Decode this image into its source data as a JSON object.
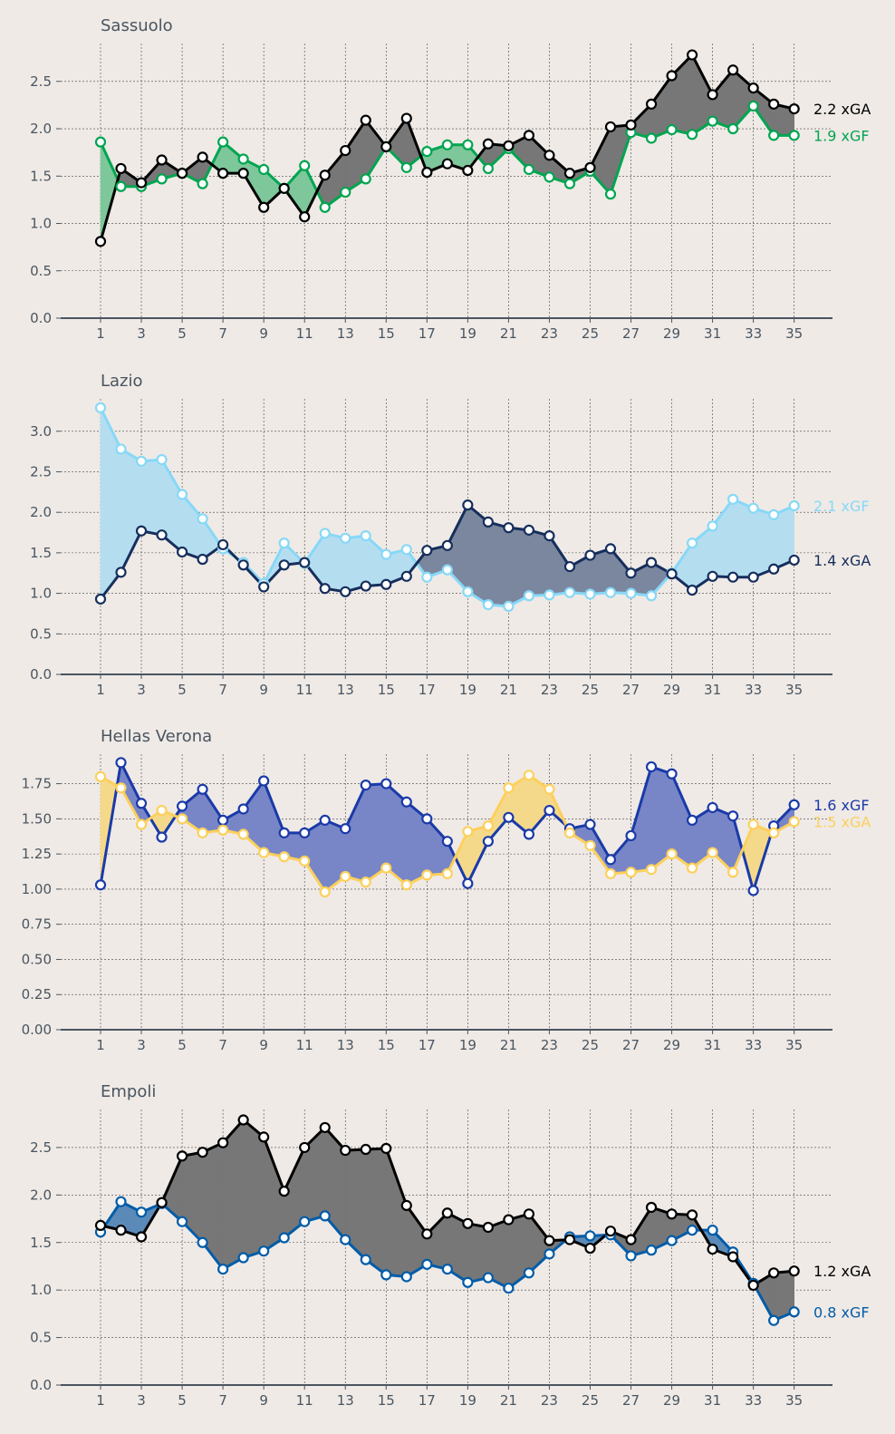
{
  "chart_data": [
    {
      "type": "line",
      "title": "Sassuolo",
      "x": [
        1,
        2,
        3,
        4,
        5,
        6,
        7,
        8,
        9,
        10,
        11,
        12,
        13,
        14,
        15,
        16,
        17,
        18,
        19,
        20,
        21,
        22,
        23,
        24,
        25,
        26,
        27,
        28,
        29,
        30,
        31,
        32,
        33,
        34,
        35
      ],
      "x_ticks": [
        1,
        3,
        5,
        7,
        9,
        11,
        13,
        15,
        17,
        19,
        21,
        23,
        25,
        27,
        29,
        31,
        33,
        35
      ],
      "ylim": [
        0,
        2.9
      ],
      "y_ticks": [
        0.0,
        0.5,
        1.0,
        1.5,
        2.0,
        2.5
      ],
      "y_tick_labels": [
        "0.0",
        "0.5",
        "1.0",
        "1.5",
        "2.0",
        "2.5"
      ],
      "xGF": {
        "label": "1.9 xGF",
        "color": "#00a550",
        "values": [
          1.86,
          1.39,
          1.39,
          1.47,
          1.53,
          1.42,
          1.86,
          1.68,
          1.57,
          1.37,
          1.61,
          1.17,
          1.33,
          1.47,
          1.81,
          1.59,
          1.76,
          1.83,
          1.83,
          1.58,
          1.79,
          1.57,
          1.49,
          1.42,
          1.55,
          1.31,
          1.96,
          1.9,
          1.99,
          1.94,
          2.08,
          2.0,
          2.24,
          1.93,
          1.93
        ]
      },
      "xGA": {
        "label": "2.2 xGA",
        "color": "#000000",
        "values": [
          0.81,
          1.58,
          1.43,
          1.67,
          1.53,
          1.7,
          1.53,
          1.53,
          1.17,
          1.37,
          1.07,
          1.51,
          1.77,
          2.09,
          1.81,
          2.11,
          1.54,
          1.63,
          1.56,
          1.84,
          1.82,
          1.93,
          1.72,
          1.53,
          1.59,
          2.02,
          2.04,
          2.26,
          2.56,
          2.78,
          2.36,
          2.62,
          2.43,
          2.26,
          2.21
        ]
      },
      "fill_gf_better": "#7dc79b",
      "fill_ga_better": "#777777"
    },
    {
      "type": "line",
      "title": "Lazio",
      "x": [
        1,
        2,
        3,
        4,
        5,
        6,
        7,
        8,
        9,
        10,
        11,
        12,
        13,
        14,
        15,
        16,
        17,
        18,
        19,
        20,
        21,
        22,
        23,
        24,
        25,
        26,
        27,
        28,
        29,
        30,
        31,
        32,
        33,
        34,
        35
      ],
      "x_ticks": [
        1,
        3,
        5,
        7,
        9,
        11,
        13,
        15,
        17,
        19,
        21,
        23,
        25,
        27,
        29,
        31,
        33,
        35
      ],
      "ylim": [
        0,
        3.4
      ],
      "y_ticks": [
        0.0,
        0.5,
        1.0,
        1.5,
        2.0,
        2.5,
        3.0
      ],
      "y_tick_labels": [
        "0.0",
        "0.5",
        "1.0",
        "1.5",
        "2.0",
        "2.5",
        "3.0"
      ],
      "xGF": {
        "label": "2.1 xGF",
        "color": "#87d8f7",
        "values": [
          3.29,
          2.78,
          2.63,
          2.65,
          2.22,
          1.92,
          1.55,
          1.38,
          1.12,
          1.62,
          1.37,
          1.74,
          1.68,
          1.71,
          1.48,
          1.54,
          1.2,
          1.29,
          1.02,
          0.86,
          0.84,
          0.97,
          0.98,
          1.01,
          0.99,
          1.01,
          1.0,
          0.97,
          1.25,
          1.62,
          1.83,
          2.16,
          2.05,
          1.97,
          2.08
        ]
      },
      "xGA": {
        "label": "1.4 xGA",
        "color": "#162e5c",
        "values": [
          0.93,
          1.26,
          1.77,
          1.72,
          1.51,
          1.42,
          1.6,
          1.35,
          1.08,
          1.35,
          1.38,
          1.06,
          1.02,
          1.09,
          1.11,
          1.21,
          1.53,
          1.59,
          2.09,
          1.88,
          1.81,
          1.78,
          1.71,
          1.33,
          1.47,
          1.55,
          1.25,
          1.38,
          1.24,
          1.04,
          1.21,
          1.2,
          1.2,
          1.3,
          1.41
        ]
      },
      "fill_gf_better": "#b4def0",
      "fill_ga_better": "#7b879e"
    },
    {
      "type": "line",
      "title": "Hellas Verona",
      "x": [
        1,
        2,
        3,
        4,
        5,
        6,
        7,
        8,
        9,
        10,
        11,
        12,
        13,
        14,
        15,
        16,
        17,
        18,
        19,
        20,
        21,
        22,
        23,
        24,
        25,
        26,
        27,
        28,
        29,
        30,
        31,
        32,
        33,
        34,
        35
      ],
      "x_ticks": [
        1,
        3,
        5,
        7,
        9,
        11,
        13,
        15,
        17,
        19,
        21,
        23,
        25,
        27,
        29,
        31,
        33,
        35
      ],
      "ylim": [
        0,
        1.96
      ],
      "y_ticks": [
        0.0,
        0.25,
        0.5,
        0.75,
        1.0,
        1.25,
        1.5,
        1.75
      ],
      "y_tick_labels": [
        "0.00",
        "0.25",
        "0.50",
        "0.75",
        "1.00",
        "1.25",
        "1.50",
        "1.75"
      ],
      "xGF": {
        "label": "1.6 xGF",
        "color": "#1a3aa8",
        "values": [
          1.03,
          1.9,
          1.61,
          1.37,
          1.59,
          1.71,
          1.49,
          1.57,
          1.77,
          1.4,
          1.4,
          1.49,
          1.43,
          1.74,
          1.75,
          1.62,
          1.5,
          1.34,
          1.04,
          1.34,
          1.51,
          1.39,
          1.56,
          1.43,
          1.46,
          1.21,
          1.38,
          1.87,
          1.82,
          1.49,
          1.58,
          1.52,
          0.99,
          1.45,
          1.6
        ]
      },
      "xGA": {
        "label": "1.5 xGA",
        "color": "#fcd05b",
        "values": [
          1.8,
          1.72,
          1.46,
          1.56,
          1.5,
          1.4,
          1.42,
          1.39,
          1.26,
          1.23,
          1.2,
          0.98,
          1.09,
          1.05,
          1.15,
          1.03,
          1.1,
          1.11,
          1.41,
          1.45,
          1.72,
          1.81,
          1.71,
          1.4,
          1.31,
          1.11,
          1.12,
          1.14,
          1.25,
          1.15,
          1.26,
          1.12,
          1.46,
          1.4,
          1.48
        ]
      },
      "fill_gf_better": "#7886c8",
      "fill_ga_better": "#f5d98b"
    },
    {
      "type": "line",
      "title": "Empoli",
      "x": [
        1,
        2,
        3,
        4,
        5,
        6,
        7,
        8,
        9,
        10,
        11,
        12,
        13,
        14,
        15,
        16,
        17,
        18,
        19,
        20,
        21,
        22,
        23,
        24,
        25,
        26,
        27,
        28,
        29,
        30,
        31,
        32,
        33,
        34,
        35
      ],
      "x_ticks": [
        1,
        3,
        5,
        7,
        9,
        11,
        13,
        15,
        17,
        19,
        21,
        23,
        25,
        27,
        29,
        31,
        33,
        35
      ],
      "ylim": [
        0,
        2.9
      ],
      "y_ticks": [
        0.0,
        0.5,
        1.0,
        1.5,
        2.0,
        2.5
      ],
      "y_tick_labels": [
        "0.0",
        "0.5",
        "1.0",
        "1.5",
        "2.0",
        "2.5"
      ],
      "xGF": {
        "label": "0.8 xGF",
        "color": "#005ca8",
        "values": [
          1.61,
          1.93,
          1.82,
          1.91,
          1.72,
          1.5,
          1.22,
          1.34,
          1.41,
          1.55,
          1.72,
          1.78,
          1.53,
          1.32,
          1.16,
          1.14,
          1.27,
          1.22,
          1.08,
          1.13,
          1.02,
          1.18,
          1.38,
          1.56,
          1.57,
          1.58,
          1.36,
          1.42,
          1.52,
          1.63,
          1.63,
          1.4,
          1.07,
          0.68,
          0.77
        ]
      },
      "xGA": {
        "label": "1.2 xGA",
        "color": "#000000",
        "values": [
          1.68,
          1.63,
          1.56,
          1.92,
          2.41,
          2.45,
          2.55,
          2.79,
          2.61,
          2.04,
          2.5,
          2.71,
          2.47,
          2.48,
          2.49,
          1.89,
          1.59,
          1.81,
          1.7,
          1.66,
          1.74,
          1.8,
          1.52,
          1.53,
          1.44,
          1.62,
          1.53,
          1.87,
          1.8,
          1.79,
          1.43,
          1.35,
          1.05,
          1.18,
          1.2
        ]
      },
      "fill_gf_better": "#5b8ab8",
      "fill_ga_better": "#777777"
    }
  ]
}
